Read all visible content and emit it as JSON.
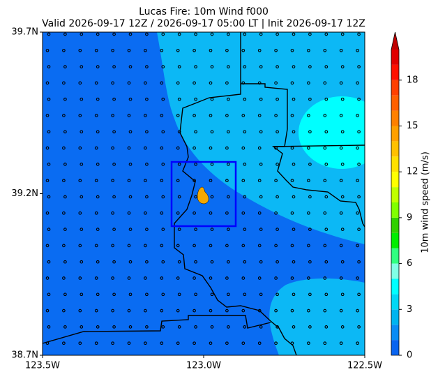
{
  "chart_data": {
    "type": "map",
    "title": "Lucas Fire: 10m Wind f000",
    "subtitle": "Valid 2026-09-17 12Z / 2026-09-17 05:00 LT | Init 2026-09-17 12Z",
    "xlim": [
      -123.5,
      -122.5
    ],
    "ylim": [
      38.7,
      39.7
    ],
    "xticks": [
      {
        "value": -123.5,
        "label": "123.5W"
      },
      {
        "value": -123.0,
        "label": "123.0W"
      },
      {
        "value": -122.5,
        "label": "122.5W"
      }
    ],
    "yticks": [
      {
        "value": 38.7,
        "label": "38.7N"
      },
      {
        "value": 39.2,
        "label": "39.2N"
      },
      {
        "value": 39.7,
        "label": "39.7N"
      }
    ],
    "colorbar": {
      "label": "10m wind speed (m/s)",
      "clim": [
        0,
        20
      ],
      "ticks": [
        0,
        3,
        6,
        9,
        12,
        15,
        18
      ],
      "levels": [
        0,
        1,
        2,
        3,
        4,
        5,
        6,
        7,
        8,
        9,
        10,
        11,
        12,
        13,
        14,
        15,
        16,
        17,
        18,
        19,
        20
      ],
      "colors": [
        "#0a64f0",
        "#0a8cf5",
        "#00b4f0",
        "#00d7f5",
        "#00ffff",
        "#80ffe6",
        "#30ff80",
        "#00ee00",
        "#30d000",
        "#80ff00",
        "#c0ff00",
        "#ffff00",
        "#ffe000",
        "#ffc000",
        "#ffa000",
        "#ff8000",
        "#ff6000",
        "#ff4000",
        "#ff1000",
        "#e00000"
      ],
      "extend_color": "#c00000"
    }
  }
}
